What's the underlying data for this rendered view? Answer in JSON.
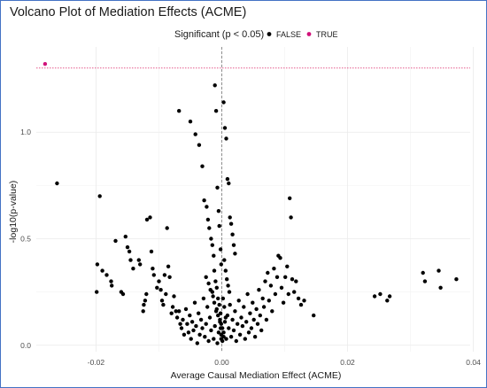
{
  "chart_data": {
    "type": "scatter",
    "title": "Volcano Plot of Mediation Effects (ACME)",
    "xlabel": "Average Causal Mediation Effect (ACME)",
    "ylabel": "-log10(p-value)",
    "xlim": [
      -0.0295,
      0.0395
    ],
    "ylim": [
      -0.03,
      1.4
    ],
    "x_ticks": [
      {
        "value": -0.02,
        "label": "-0.02"
      },
      {
        "value": 0.0,
        "label": "0.00"
      },
      {
        "value": 0.02,
        "label": "0.02"
      },
      {
        "value": 0.04,
        "label": "0.04"
      }
    ],
    "y_ticks": [
      {
        "value": 0.0,
        "label": "0.0"
      },
      {
        "value": 0.5,
        "label": "0.5"
      },
      {
        "value": 1.0,
        "label": "1.0"
      }
    ],
    "grid": true,
    "threshold_line": {
      "y": 1.301,
      "color": "#e0407a"
    },
    "zero_line": {
      "x": 0.0
    },
    "legend": {
      "title": "Significant (p < 0.05)",
      "position": "top",
      "entries": [
        {
          "label": "FALSE",
          "color": "#000000"
        },
        {
          "label": "TRUE",
          "color": "#d1127a"
        }
      ]
    },
    "series": [
      {
        "name": "TRUE",
        "color": "#d1127a",
        "points": [
          [
            -0.0281,
            1.32
          ]
        ]
      },
      {
        "name": "FALSE",
        "color": "#000000",
        "points": [
          [
            -0.0262,
            0.76
          ],
          [
            -0.0194,
            0.7
          ],
          [
            -0.0198,
            0.38
          ],
          [
            -0.0199,
            0.25
          ],
          [
            -0.019,
            0.35
          ],
          [
            -0.0183,
            0.33
          ],
          [
            -0.0176,
            0.3
          ],
          [
            -0.0175,
            0.28
          ],
          [
            -0.0169,
            0.49
          ],
          [
            -0.016,
            0.25
          ],
          [
            -0.0157,
            0.24
          ],
          [
            -0.0153,
            0.51
          ],
          [
            -0.015,
            0.46
          ],
          [
            -0.0147,
            0.44
          ],
          [
            -0.0145,
            0.4
          ],
          [
            -0.0141,
            0.36
          ],
          [
            -0.0132,
            0.4
          ],
          [
            -0.013,
            0.38
          ],
          [
            -0.0125,
            0.16
          ],
          [
            -0.0124,
            0.19
          ],
          [
            -0.0122,
            0.21
          ],
          [
            -0.012,
            0.24
          ],
          [
            -0.0119,
            0.59
          ],
          [
            -0.0114,
            0.6
          ],
          [
            -0.0112,
            0.44
          ],
          [
            -0.011,
            0.36
          ],
          [
            -0.0108,
            0.33
          ],
          [
            -0.0103,
            0.27
          ],
          [
            -0.01,
            0.3
          ],
          [
            -0.0097,
            0.26
          ],
          [
            -0.0095,
            0.21
          ],
          [
            -0.0093,
            0.19
          ],
          [
            -0.0091,
            0.33
          ],
          [
            -0.0089,
            0.24
          ],
          [
            -0.0087,
            0.55
          ],
          [
            -0.0085,
            0.37
          ],
          [
            -0.0083,
            0.32
          ],
          [
            -0.008,
            0.15
          ],
          [
            -0.0078,
            0.18
          ],
          [
            -0.0076,
            0.23
          ],
          [
            -0.0073,
            0.16
          ],
          [
            -0.0071,
            0.13
          ],
          [
            -0.0068,
            0.16
          ],
          [
            -0.0066,
            0.1
          ],
          [
            -0.0064,
            0.08
          ],
          [
            -0.0062,
            0.12
          ],
          [
            -0.006,
            0.05
          ],
          [
            -0.0057,
            0.17
          ],
          [
            -0.0055,
            0.1
          ],
          [
            -0.0053,
            0.06
          ],
          [
            -0.0051,
            0.14
          ],
          [
            -0.0049,
            0.03
          ],
          [
            -0.0047,
            0.11
          ],
          [
            -0.0045,
            0.07
          ],
          [
            -0.0043,
            0.2
          ],
          [
            -0.0041,
            0.09
          ],
          [
            -0.0039,
            0.01
          ],
          [
            -0.0037,
            0.15
          ],
          [
            -0.0035,
            0.05
          ],
          [
            -0.0033,
            0.12
          ],
          [
            -0.0031,
            0.08
          ],
          [
            -0.0029,
            0.22
          ],
          [
            -0.0027,
            0.04
          ],
          [
            -0.0025,
            0.1
          ],
          [
            -0.0023,
            0.18
          ],
          [
            -0.0021,
            0.02
          ],
          [
            -0.0019,
            0.13
          ],
          [
            -0.0017,
            0.07
          ],
          [
            -0.0015,
            0.25
          ],
          [
            -0.0013,
            0.03
          ],
          [
            -0.0011,
            0.09
          ],
          [
            -0.0009,
            0.16
          ],
          [
            -0.0007,
            0.01
          ],
          [
            -0.0005,
            0.06
          ],
          [
            -0.0003,
            0.12
          ],
          [
            -0.0001,
            0.03
          ],
          [
            -0.0068,
            1.1
          ],
          [
            -0.005,
            1.05
          ],
          [
            -0.0042,
            0.99
          ],
          [
            -0.0036,
            0.94
          ],
          [
            -0.0031,
            0.84
          ],
          [
            -0.0028,
            0.68
          ],
          [
            -0.0024,
            0.65
          ],
          [
            -0.0022,
            0.59
          ],
          [
            -0.002,
            0.55
          ],
          [
            -0.0017,
            0.5
          ],
          [
            -0.0015,
            0.47
          ],
          [
            -0.0013,
            0.42
          ],
          [
            -0.0011,
            1.22
          ],
          [
            -0.0009,
            1.1
          ],
          [
            -0.0007,
            0.74
          ],
          [
            -0.0005,
            0.63
          ],
          [
            -0.0004,
            0.56
          ],
          [
            -0.0002,
            0.45
          ],
          [
            -0.0001,
            0.38
          ],
          [
            -0.0012,
            0.35
          ],
          [
            -0.001,
            0.3
          ],
          [
            -0.0008,
            0.27
          ],
          [
            -0.0006,
            0.22
          ],
          [
            -0.0004,
            0.19
          ],
          [
            -0.0002,
            0.15
          ],
          [
            -0.0001,
            0.1
          ],
          [
            -0.0025,
            0.32
          ],
          [
            -0.0021,
            0.29
          ],
          [
            -0.0018,
            0.26
          ],
          [
            -0.0014,
            0.23
          ],
          [
            -0.0012,
            0.2
          ],
          [
            -0.0008,
            0.17
          ],
          [
            -0.0006,
            0.14
          ],
          [
            -0.0003,
            0.11
          ],
          [
            -0.0002,
            0.08
          ],
          [
            -0.0001,
            0.05
          ],
          [
            0.0001,
            0.02
          ],
          [
            0.0003,
            0.06
          ],
          [
            0.0005,
            0.11
          ],
          [
            0.0007,
            0.03
          ],
          [
            0.0009,
            0.14
          ],
          [
            0.0011,
            0.08
          ],
          [
            0.0013,
            0.19
          ],
          [
            0.0015,
            0.04
          ],
          [
            0.0017,
            0.12
          ],
          [
            0.0019,
            0.07
          ],
          [
            0.0021,
            0.16
          ],
          [
            0.0023,
            0.02
          ],
          [
            0.0025,
            0.1
          ],
          [
            0.0027,
            0.21
          ],
          [
            0.0029,
            0.05
          ],
          [
            0.0031,
            0.13
          ],
          [
            0.0033,
            0.09
          ],
          [
            0.0035,
            0.18
          ],
          [
            0.0037,
            0.03
          ],
          [
            0.0039,
            0.11
          ],
          [
            0.0041,
            0.24
          ],
          [
            0.0043,
            0.06
          ],
          [
            0.0045,
            0.15
          ],
          [
            0.0047,
            0.08
          ],
          [
            0.0049,
            0.2
          ],
          [
            0.0051,
            0.12
          ],
          [
            0.0053,
            0.04
          ],
          [
            0.0055,
            0.17
          ],
          [
            0.0057,
            0.1
          ],
          [
            0.0059,
            0.26
          ],
          [
            0.0061,
            0.14
          ],
          [
            0.0063,
            0.07
          ],
          [
            0.0065,
            0.22
          ],
          [
            0.0067,
            0.18
          ],
          [
            0.0069,
            0.3
          ],
          [
            0.0071,
            0.12
          ],
          [
            0.0073,
            0.34
          ],
          [
            0.0075,
            0.21
          ],
          [
            0.0078,
            0.28
          ],
          [
            0.008,
            0.16
          ],
          [
            0.0083,
            0.36
          ],
          [
            0.0085,
            0.24
          ],
          [
            0.0088,
            0.32
          ],
          [
            0.009,
            0.42
          ],
          [
            0.0093,
            0.41
          ],
          [
            0.0095,
            0.27
          ],
          [
            0.0098,
            0.2
          ],
          [
            0.0101,
            0.32
          ],
          [
            0.0104,
            0.37
          ],
          [
            0.0106,
            0.24
          ],
          [
            0.0108,
            0.69
          ],
          [
            0.011,
            0.6
          ],
          [
            0.0112,
            0.31
          ],
          [
            0.0115,
            0.25
          ],
          [
            0.0118,
            0.3
          ],
          [
            0.0122,
            0.22
          ],
          [
            0.0126,
            0.19
          ],
          [
            0.0131,
            0.21
          ],
          [
            0.0146,
            0.14
          ],
          [
            0.0003,
            1.14
          ],
          [
            0.0005,
            1.02
          ],
          [
            0.0007,
            0.97
          ],
          [
            0.0009,
            0.78
          ],
          [
            0.0011,
            0.76
          ],
          [
            0.0013,
            0.6
          ],
          [
            0.0015,
            0.57
          ],
          [
            0.0017,
            0.52
          ],
          [
            0.0019,
            0.47
          ],
          [
            0.0021,
            0.43
          ],
          [
            0.0004,
            0.4
          ],
          [
            0.0006,
            0.35
          ],
          [
            0.0008,
            0.31
          ],
          [
            0.001,
            0.28
          ],
          [
            0.0012,
            0.25
          ],
          [
            0.0002,
            0.22
          ],
          [
            0.0004,
            0.18
          ],
          [
            0.0006,
            0.13
          ],
          [
            0.0001,
            0.08
          ],
          [
            0.0003,
            0.04
          ],
          [
            0.0243,
            0.23
          ],
          [
            0.0252,
            0.24
          ],
          [
            0.0263,
            0.21
          ],
          [
            0.0267,
            0.23
          ],
          [
            0.032,
            0.34
          ],
          [
            0.0323,
            0.3
          ],
          [
            0.0345,
            0.35
          ],
          [
            0.0348,
            0.27
          ],
          [
            0.0373,
            0.31
          ]
        ]
      }
    ]
  }
}
